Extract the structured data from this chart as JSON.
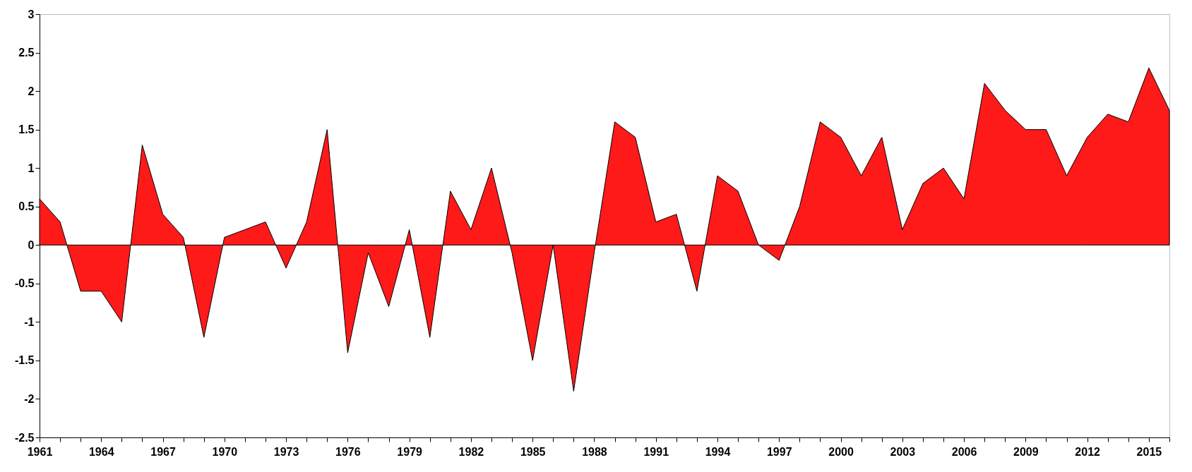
{
  "chart_data": {
    "type": "area",
    "x": [
      1961,
      1962,
      1963,
      1964,
      1965,
      1966,
      1967,
      1968,
      1969,
      1970,
      1971,
      1972,
      1973,
      1974,
      1975,
      1976,
      1977,
      1978,
      1979,
      1980,
      1981,
      1982,
      1983,
      1984,
      1985,
      1986,
      1987,
      1988,
      1989,
      1990,
      1991,
      1992,
      1993,
      1994,
      1995,
      1996,
      1997,
      1998,
      1999,
      2000,
      2001,
      2002,
      2003,
      2004,
      2005,
      2006,
      2007,
      2008,
      2009,
      2010,
      2011,
      2012,
      2013,
      2014,
      2015,
      2016
    ],
    "series": [
      {
        "color": "#ff1a1a",
        "values": [
          0.6,
          0.3,
          -0.6,
          -0.6,
          -1.0,
          1.3,
          0.4,
          0.1,
          -1.2,
          0.1,
          0.2,
          0.3,
          -0.3,
          0.3,
          1.5,
          -1.4,
          -0.1,
          -0.8,
          0.2,
          -1.2,
          0.7,
          0.2,
          1.0,
          -0.1,
          -1.5,
          0,
          -1.9,
          -0.1,
          1.6,
          1.4,
          0.3,
          0.4,
          -0.6,
          0.9,
          0.7,
          0,
          -0.2,
          0.5,
          1.6,
          1.4,
          0.9,
          1.4,
          0.2,
          0.8,
          1.0,
          0.6,
          2.1,
          1.75,
          1.5,
          1.5,
          0.9,
          1.4,
          1.7,
          1.6,
          2.3,
          1.75
        ]
      }
    ],
    "xlim": [
      1961,
      2016
    ],
    "xticks": [
      1961,
      {
        "value": 1962,
        "label": null
      },
      {
        "value": 1963,
        "label": null
      },
      1964,
      {
        "value": 1965,
        "label": null
      },
      {
        "value": 1966,
        "label": null
      },
      1967,
      {
        "value": 1968,
        "label": null
      },
      {
        "value": 1969,
        "label": null
      },
      1970,
      {
        "value": 1971,
        "label": null
      },
      {
        "value": 1972,
        "label": null
      },
      1973,
      {
        "value": 1974,
        "label": null
      },
      {
        "value": 1975,
        "label": null
      },
      1976,
      {
        "value": 1977,
        "label": null
      },
      {
        "value": 1978,
        "label": null
      },
      1979,
      {
        "value": 1980,
        "label": null
      },
      {
        "value": 1981,
        "label": null
      },
      1982,
      {
        "value": 1983,
        "label": null
      },
      {
        "value": 1984,
        "label": null
      },
      1985,
      {
        "value": 1986,
        "label": null
      },
      {
        "value": 1987,
        "label": null
      },
      1988,
      {
        "value": 1989,
        "label": null
      },
      {
        "value": 1990,
        "label": null
      },
      1991,
      {
        "value": 1992,
        "label": null
      },
      {
        "value": 1993,
        "label": null
      },
      1994,
      {
        "value": 1995,
        "label": null
      },
      {
        "value": 1996,
        "label": null
      },
      1997,
      {
        "value": 1998,
        "label": null
      },
      {
        "value": 1999,
        "label": null
      },
      2000,
      {
        "value": 2001,
        "label": null
      },
      {
        "value": 2002,
        "label": null
      },
      2003,
      {
        "value": 2004,
        "label": null
      },
      {
        "value": 2005,
        "label": null
      },
      2006,
      {
        "value": 2007,
        "label": null
      },
      {
        "value": 2008,
        "label": null
      },
      2009,
      {
        "value": 2010,
        "label": null
      },
      {
        "value": 2011,
        "label": null
      },
      2012,
      {
        "value": 2013,
        "label": null
      },
      {
        "value": 2014,
        "label": null
      },
      2015,
      {
        "value": 2016,
        "label": null
      }
    ],
    "ylim": [
      -2.5,
      3
    ],
    "yticks": [
      -2.5,
      -2,
      -1.5,
      -1,
      -0.5,
      0,
      0.5,
      1,
      1.5,
      2,
      2.5,
      3
    ],
    "grid": false
  }
}
